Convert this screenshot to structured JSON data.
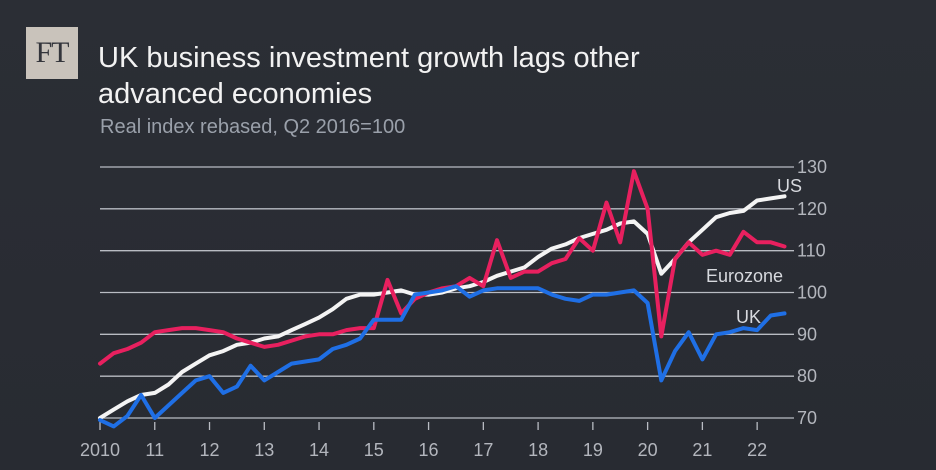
{
  "logo": "FT",
  "chart_data": {
    "type": "line",
    "title": "UK business investment growth lags other advanced economies",
    "subtitle": "Real index rebased, Q2 2016=100",
    "xlabel": "",
    "ylabel": "",
    "xlim": [
      2010,
      2022.6
    ],
    "ylim": [
      70,
      130
    ],
    "y_ticks": [
      70,
      80,
      90,
      100,
      110,
      120,
      130
    ],
    "x_ticks": [
      {
        "value": 2010,
        "label": "2010"
      },
      {
        "value": 2011,
        "label": "11"
      },
      {
        "value": 2012,
        "label": "12"
      },
      {
        "value": 2013,
        "label": "13"
      },
      {
        "value": 2014,
        "label": "14"
      },
      {
        "value": 2015,
        "label": "15"
      },
      {
        "value": 2016,
        "label": "16"
      },
      {
        "value": 2017,
        "label": "17"
      },
      {
        "value": 2018,
        "label": "18"
      },
      {
        "value": 2019,
        "label": "19"
      },
      {
        "value": 2020,
        "label": "20"
      },
      {
        "value": 2021,
        "label": "21"
      },
      {
        "value": 2022,
        "label": "22"
      }
    ],
    "grid": true,
    "series": [
      {
        "name": "US",
        "color": "#f4f4f4",
        "points": [
          [
            2010,
            70
          ],
          [
            2010.25,
            72
          ],
          [
            2010.5,
            74
          ],
          [
            2010.75,
            75.5
          ],
          [
            2011,
            76
          ],
          [
            2011.25,
            78
          ],
          [
            2011.5,
            81
          ],
          [
            2011.75,
            83
          ],
          [
            2012,
            85
          ],
          [
            2012.25,
            86
          ],
          [
            2012.5,
            87.5
          ],
          [
            2012.75,
            88
          ],
          [
            2013,
            89
          ],
          [
            2013.25,
            89.5
          ],
          [
            2013.5,
            91
          ],
          [
            2013.75,
            92.5
          ],
          [
            2014,
            94
          ],
          [
            2014.25,
            96
          ],
          [
            2014.5,
            98.5
          ],
          [
            2014.75,
            99.5
          ],
          [
            2015,
            99.5
          ],
          [
            2015.25,
            100
          ],
          [
            2015.5,
            100.5
          ],
          [
            2015.75,
            99.5
          ],
          [
            2016,
            99.5
          ],
          [
            2016.25,
            100
          ],
          [
            2016.5,
            101
          ],
          [
            2016.75,
            101.5
          ],
          [
            2017,
            102.5
          ],
          [
            2017.25,
            104
          ],
          [
            2017.5,
            105
          ],
          [
            2017.75,
            106
          ],
          [
            2018,
            108.5
          ],
          [
            2018.25,
            110.5
          ],
          [
            2018.5,
            111.5
          ],
          [
            2018.75,
            113
          ],
          [
            2019,
            114
          ],
          [
            2019.25,
            115
          ],
          [
            2019.5,
            116.5
          ],
          [
            2019.75,
            117
          ],
          [
            2020,
            114
          ],
          [
            2020.25,
            104.5
          ],
          [
            2020.5,
            108
          ],
          [
            2020.75,
            112
          ],
          [
            2021,
            115
          ],
          [
            2021.25,
            118
          ],
          [
            2021.5,
            119
          ],
          [
            2021.75,
            119.5
          ],
          [
            2022,
            122
          ],
          [
            2022.25,
            122.5
          ],
          [
            2022.5,
            123
          ]
        ]
      },
      {
        "name": "Eurozone",
        "color": "#e8205f",
        "points": [
          [
            2010,
            83
          ],
          [
            2010.25,
            85.5
          ],
          [
            2010.5,
            86.5
          ],
          [
            2010.75,
            88
          ],
          [
            2011,
            90.5
          ],
          [
            2011.25,
            91
          ],
          [
            2011.5,
            91.5
          ],
          [
            2011.75,
            91.5
          ],
          [
            2012,
            91
          ],
          [
            2012.25,
            90.5
          ],
          [
            2012.5,
            89
          ],
          [
            2012.75,
            88
          ],
          [
            2013,
            87
          ],
          [
            2013.25,
            87.5
          ],
          [
            2013.5,
            88.5
          ],
          [
            2013.75,
            89.5
          ],
          [
            2014,
            90
          ],
          [
            2014.25,
            90
          ],
          [
            2014.5,
            91
          ],
          [
            2014.75,
            91.5
          ],
          [
            2015,
            91.5
          ],
          [
            2015.25,
            103
          ],
          [
            2015.5,
            95
          ],
          [
            2015.75,
            98.5
          ],
          [
            2016,
            100
          ],
          [
            2016.25,
            101
          ],
          [
            2016.5,
            101.5
          ],
          [
            2016.75,
            103.5
          ],
          [
            2017,
            101.5
          ],
          [
            2017.25,
            112.5
          ],
          [
            2017.5,
            103.5
          ],
          [
            2017.75,
            105
          ],
          [
            2018,
            105
          ],
          [
            2018.25,
            107
          ],
          [
            2018.5,
            108
          ],
          [
            2018.75,
            113
          ],
          [
            2019,
            110
          ],
          [
            2019.25,
            121.5
          ],
          [
            2019.5,
            112
          ],
          [
            2019.75,
            129
          ],
          [
            2020,
            120
          ],
          [
            2020.25,
            89.5
          ],
          [
            2020.5,
            108
          ],
          [
            2020.75,
            112
          ],
          [
            2021,
            109
          ],
          [
            2021.25,
            110
          ],
          [
            2021.5,
            109
          ],
          [
            2021.75,
            114.5
          ],
          [
            2022,
            112
          ],
          [
            2022.25,
            112
          ],
          [
            2022.5,
            111
          ]
        ]
      },
      {
        "name": "UK",
        "color": "#1f6fe5",
        "points": [
          [
            2010,
            69.5
          ],
          [
            2010.25,
            68
          ],
          [
            2010.5,
            70.5
          ],
          [
            2010.75,
            75.5
          ],
          [
            2011,
            70
          ],
          [
            2011.25,
            73
          ],
          [
            2011.5,
            76
          ],
          [
            2011.75,
            79
          ],
          [
            2012,
            80
          ],
          [
            2012.25,
            76
          ],
          [
            2012.5,
            77.5
          ],
          [
            2012.75,
            82.5
          ],
          [
            2013,
            79
          ],
          [
            2013.25,
            81
          ],
          [
            2013.5,
            83
          ],
          [
            2013.75,
            83.5
          ],
          [
            2014,
            84
          ],
          [
            2014.25,
            86.5
          ],
          [
            2014.5,
            87.5
          ],
          [
            2014.75,
            89
          ],
          [
            2015,
            93.5
          ],
          [
            2015.25,
            93.5
          ],
          [
            2015.5,
            93.5
          ],
          [
            2015.75,
            99.5
          ],
          [
            2016,
            100
          ],
          [
            2016.25,
            100.5
          ],
          [
            2016.5,
            101.5
          ],
          [
            2016.75,
            99
          ],
          [
            2017,
            100.5
          ],
          [
            2017.25,
            101
          ],
          [
            2017.5,
            101
          ],
          [
            2017.75,
            101
          ],
          [
            2018,
            101
          ],
          [
            2018.25,
            99.5
          ],
          [
            2018.5,
            98.5
          ],
          [
            2018.75,
            98
          ],
          [
            2019,
            99.5
          ],
          [
            2019.25,
            99.5
          ],
          [
            2019.5,
            100
          ],
          [
            2019.75,
            100.5
          ],
          [
            2020,
            97.5
          ],
          [
            2020.25,
            79
          ],
          [
            2020.5,
            86
          ],
          [
            2020.75,
            90.5
          ],
          [
            2021,
            84
          ],
          [
            2021.25,
            90
          ],
          [
            2021.5,
            90.5
          ],
          [
            2021.75,
            91.5
          ],
          [
            2022,
            91
          ],
          [
            2022.25,
            94.5
          ],
          [
            2022.5,
            95
          ]
        ]
      }
    ],
    "labels": [
      {
        "series": "US",
        "text": "US"
      },
      {
        "series": "Eurozone",
        "text": "Eurozone"
      },
      {
        "series": "UK",
        "text": "UK"
      }
    ]
  }
}
